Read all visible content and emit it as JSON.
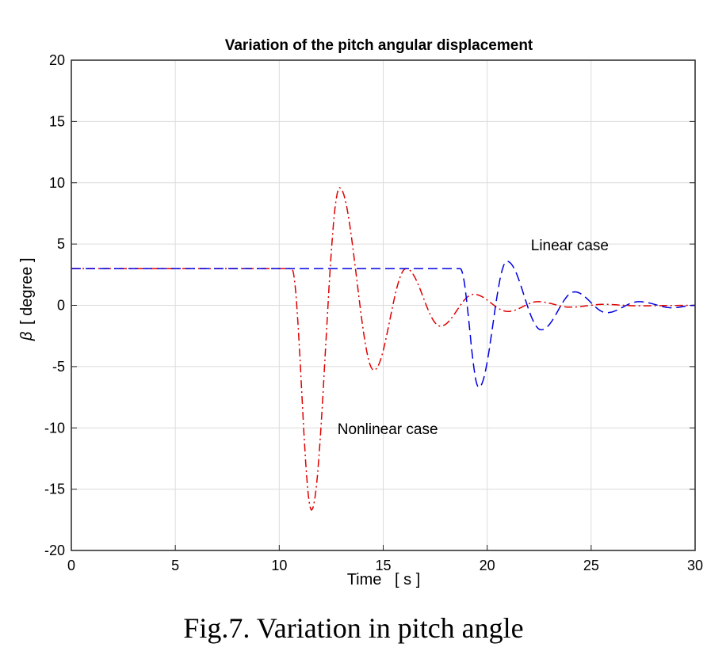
{
  "chart_data": {
    "type": "line",
    "title": "Variation of the pitch angular displacement",
    "xlabel": "Time   [ s ]",
    "ylabel_symbol": "β",
    "ylabel_unit": "[ degree ]",
    "xlim": [
      0,
      30
    ],
    "ylim": [
      -20,
      20
    ],
    "xticks": [
      0,
      5,
      10,
      15,
      20,
      25,
      30
    ],
    "yticks": [
      -20,
      -15,
      -10,
      -5,
      0,
      5,
      10,
      15,
      20
    ],
    "grid": true,
    "series": [
      {
        "name": "Nonlinear case",
        "color": "#e00000",
        "style": "dash-dot",
        "points": [
          [
            0,
            3
          ],
          [
            10.6,
            3
          ],
          [
            11.55,
            -16.7
          ],
          [
            12.9,
            9.6
          ],
          [
            14.55,
            -5.3
          ],
          [
            16.1,
            3
          ],
          [
            17.75,
            -1.7
          ],
          [
            19.35,
            0.9
          ],
          [
            21.0,
            -0.5
          ],
          [
            22.45,
            0.3
          ],
          [
            24.0,
            -0.15
          ],
          [
            25.6,
            0.08
          ],
          [
            27.2,
            -0.04
          ],
          [
            30,
            0
          ]
        ]
      },
      {
        "name": "Linear case",
        "color": "#0000e0",
        "style": "dashed",
        "points": [
          [
            0,
            3
          ],
          [
            18.7,
            3
          ],
          [
            19.6,
            -6.7
          ],
          [
            20.95,
            3.6
          ],
          [
            22.6,
            -2.0
          ],
          [
            24.2,
            1.1
          ],
          [
            25.75,
            -0.6
          ],
          [
            27.3,
            0.3
          ],
          [
            28.9,
            -0.2
          ],
          [
            30,
            0
          ]
        ]
      }
    ],
    "annotations": [
      {
        "text": "Linear case",
        "x": 22.1,
        "y": 4.5
      },
      {
        "text": "Nonlinear case",
        "x": 12.8,
        "y": -10.5
      }
    ]
  },
  "caption": "Fig.7. Variation in pitch angle"
}
